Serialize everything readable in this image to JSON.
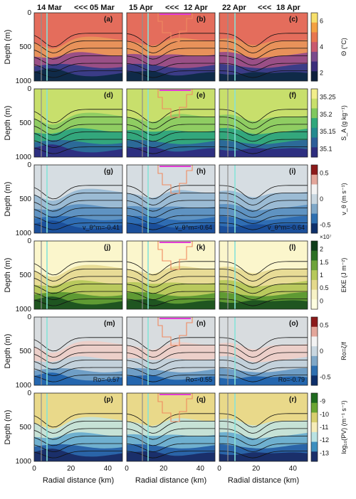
{
  "figure": {
    "columns": [
      {
        "date_left": "14 Mar",
        "arrow": "<<<",
        "date_right": "05 Mar"
      },
      {
        "date_left": "15 Apr",
        "arrow": "<<<",
        "date_right": "12 Apr"
      },
      {
        "date_left": "22 Apr",
        "arrow": "<<<",
        "date_right": "18 Apr"
      }
    ],
    "x_label": "Radial distance (km)",
    "y_label": "Depth (m)",
    "x_ticks": [
      "0",
      "20",
      "40"
    ],
    "y_ticks": [
      "0",
      "500",
      "1000"
    ],
    "rows": [
      {
        "panels": [
          "(a)",
          "(b)",
          "(c)"
        ],
        "colorbar_label": "Θ (°C)",
        "colorbar_ticks": [
          "6",
          "4",
          "2"
        ],
        "colorbar_colors": [
          "#f7e06b",
          "#f4a142",
          "#e8764f",
          "#c95a6e",
          "#7a4a8c",
          "#3a2d7a",
          "#0d1f3c"
        ],
        "fills": [
          "#e46d5c",
          "#e8925a",
          "#9a4f86",
          "#3b3c87",
          "#0f2a48"
        ],
        "annotations": [
          "",
          "",
          ""
        ],
        "colorbar_exponent": ""
      },
      {
        "panels": [
          "(d)",
          "(e)",
          "(f)"
        ],
        "colorbar_label": "S_A (g kg⁻¹)",
        "colorbar_ticks": [
          "35.25",
          "35.2",
          "35.15",
          "35.1"
        ],
        "colorbar_colors": [
          "#f2ee8a",
          "#c9e06b",
          "#7fc85e",
          "#2fa77b",
          "#238a8f",
          "#2c5e99",
          "#2e2d7e"
        ],
        "fills": [
          "#c8df6c",
          "#8fcd62",
          "#33a77c",
          "#2c6a98",
          "#2d2f80"
        ],
        "annotations": [
          "",
          "",
          ""
        ],
        "colorbar_exponent": ""
      },
      {
        "panels": [
          "(g)",
          "(h)",
          "(i)"
        ],
        "colorbar_label": "v_θ (m s⁻¹)",
        "colorbar_ticks": [
          "0.5",
          "0",
          "-0.5"
        ],
        "colorbar_colors": [
          "#8c1a1a",
          "#e3a69a",
          "#f3f3f3",
          "#c9d7e0",
          "#7fa8c8",
          "#2e6fb0",
          "#0d2f6a"
        ],
        "fills": [
          "#d6dde2",
          "#9bbbd4",
          "#5f93c2",
          "#2f6db3",
          "#1b4f9a"
        ],
        "annotations": [
          "v_θ^m=-0.41",
          "v_θ^m=-0.64",
          "v_θ^m=-0.64"
        ],
        "colorbar_exponent": "×10⁷"
      },
      {
        "panels": [
          "(j)",
          "(k)",
          "(l)"
        ],
        "colorbar_label": "EKE (J m⁻²)",
        "colorbar_ticks": [
          "2",
          "1.5",
          "1",
          "0.5",
          "0"
        ],
        "colorbar_colors": [
          "#0f3d1a",
          "#2b6f23",
          "#6ea33a",
          "#b7c95a",
          "#e4d98b",
          "#f7f2c6",
          "#ffffe0"
        ],
        "fills": [
          "#fbf6cc",
          "#e8dc96",
          "#b9c95d",
          "#5f9a33",
          "#1f5520"
        ],
        "annotations": [
          "",
          "",
          ""
        ],
        "colorbar_exponent": ""
      },
      {
        "panels": [
          "(m)",
          "(n)",
          "(o)"
        ],
        "colorbar_label": "Ro=ζ/f",
        "colorbar_ticks": [
          "0.5",
          "0",
          "-0.5"
        ],
        "colorbar_colors": [
          "#8c1a1a",
          "#e3a69a",
          "#f3f3f3",
          "#c9d7e0",
          "#7fa8c8",
          "#2e6fb0",
          "#0d2f6a"
        ],
        "fills": [
          "#d8dcdf",
          "#eccfc9",
          "#c3d1db",
          "#6f9ec6",
          "#2466ae"
        ],
        "annotations": [
          "Ro=-0.57",
          "Ro=-0.55",
          "Ro=-0.79"
        ],
        "colorbar_exponent": ""
      },
      {
        "panels": [
          "(p)",
          "(q)",
          "(r)"
        ],
        "colorbar_label": "log₁₀(PV) (m⁻¹ s⁻¹)",
        "colorbar_ticks": [
          "-9",
          "-10",
          "-11",
          "-12",
          "-13"
        ],
        "colorbar_colors": [
          "#1e6a1e",
          "#6aa533",
          "#d8cf6e",
          "#f6ecb8",
          "#b9e2e2",
          "#3d8fbf",
          "#1a2f6a"
        ],
        "fills": [
          "#e9d98a",
          "#c6e2d6",
          "#6fb0cf",
          "#2a64a8",
          "#1a2f6a"
        ],
        "annotations": [
          "",
          "",
          ""
        ],
        "colorbar_exponent": ""
      }
    ]
  }
}
